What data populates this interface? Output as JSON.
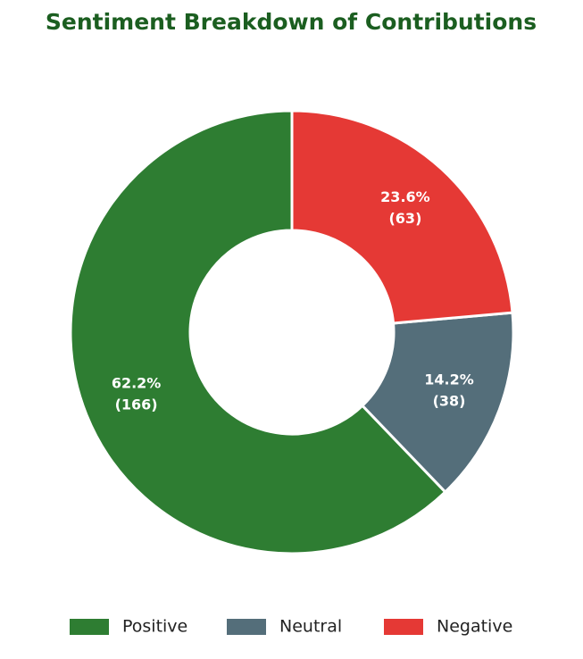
{
  "chart_data": {
    "type": "donut",
    "title": "Sentiment Breakdown of Contributions",
    "direction": "counterclockwise",
    "series": [
      {
        "name": "Positive",
        "color": "#2e7d32"
      },
      {
        "name": "Neutral",
        "color": "#546e7a"
      },
      {
        "name": "Negative",
        "color": "#e53935"
      }
    ],
    "values": [
      166,
      38,
      63
    ],
    "percent_labels": [
      "62.2%",
      "14.2%",
      "23.6%"
    ],
    "value_labels": [
      "(166)",
      "(38)",
      "(63)"
    ],
    "legend": "bottom"
  }
}
